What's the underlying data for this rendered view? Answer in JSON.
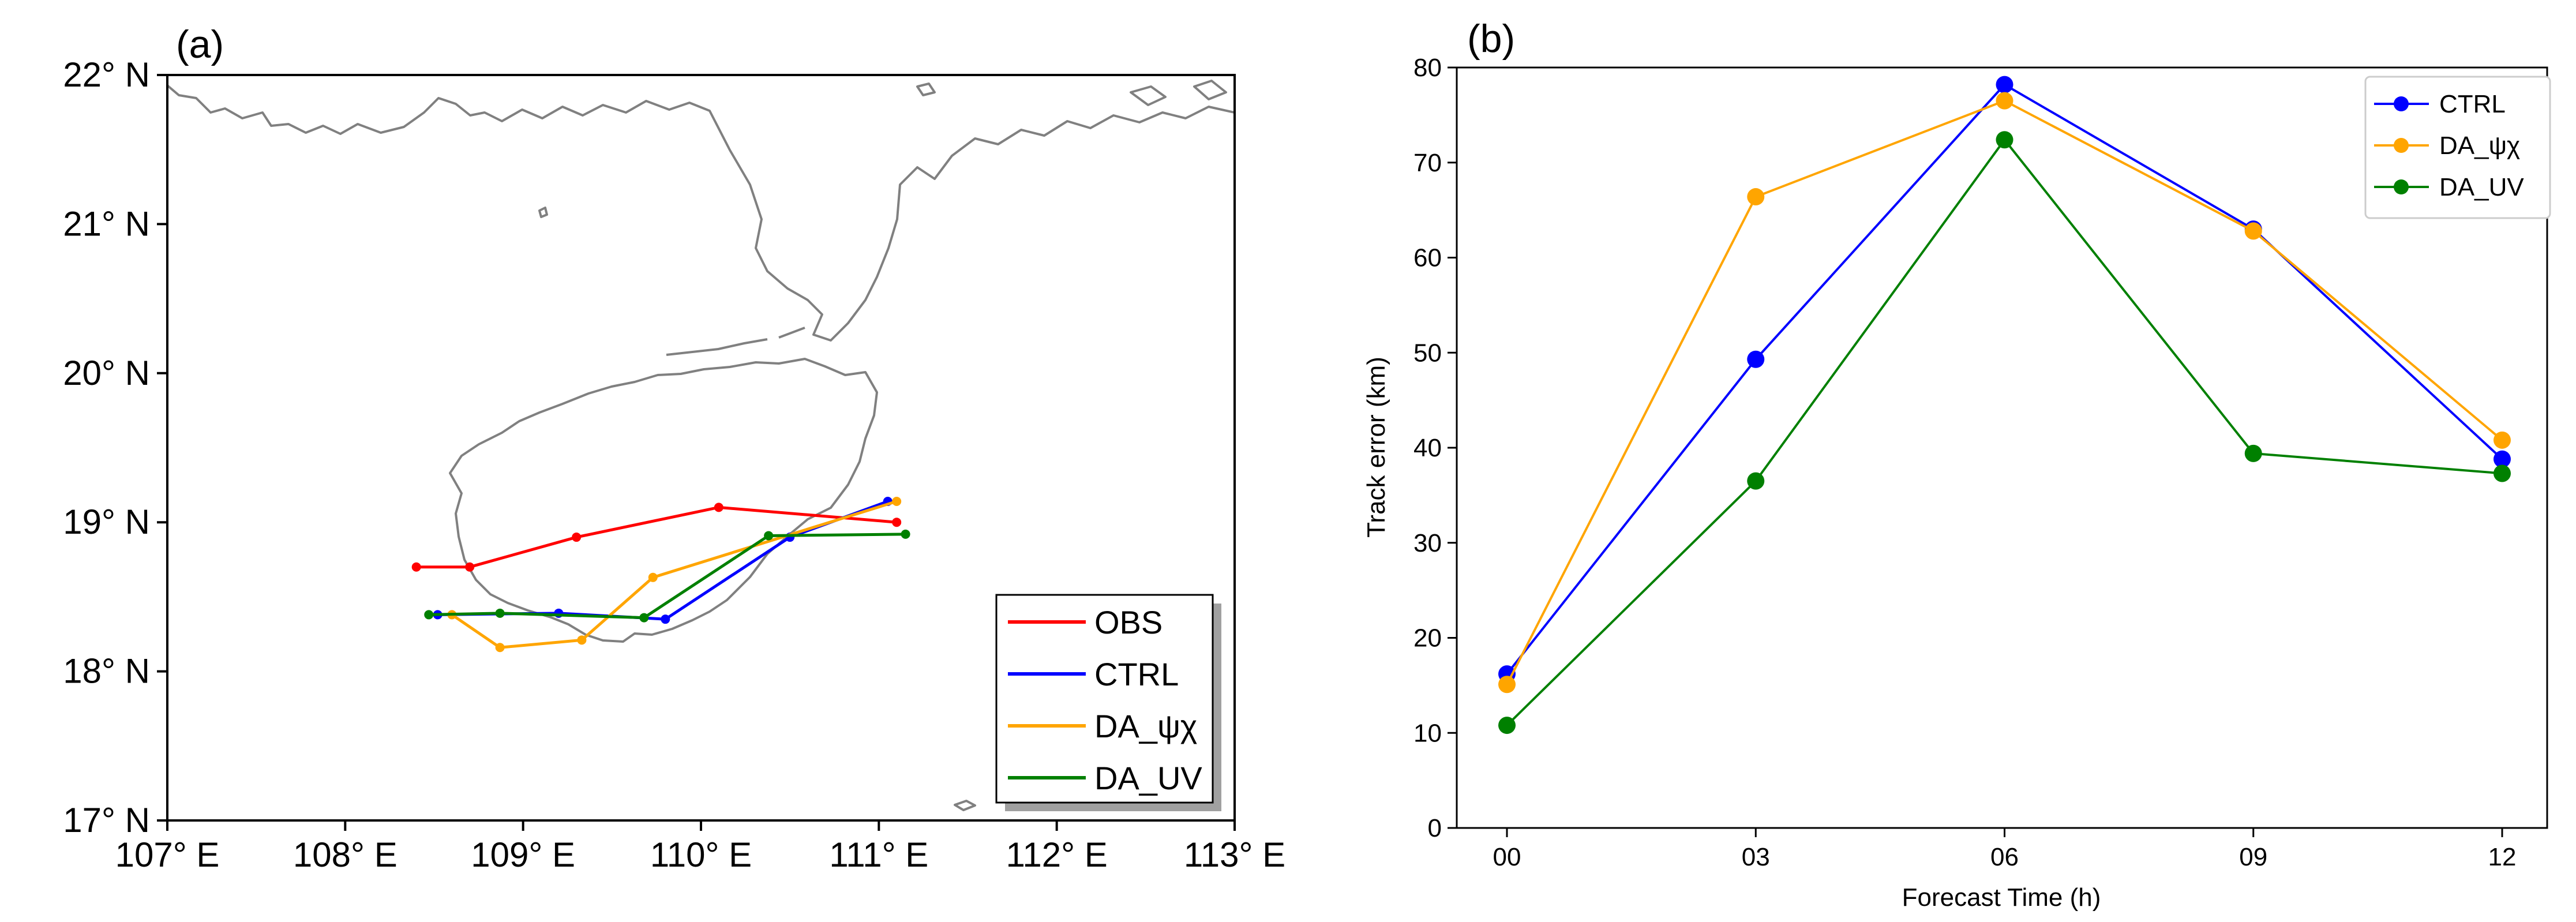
{
  "colors": {
    "obs": "#ff0000",
    "ctrl": "#0000ff",
    "da_psichi": "#ffa500",
    "da_uv": "#008000",
    "coast": "#808080",
    "axis": "#000000"
  },
  "chart_data": [
    {
      "panel": "(a)",
      "type": "line",
      "subtype": "track map",
      "xlim": [
        107,
        113
      ],
      "ylim": [
        17,
        22
      ],
      "x_ticks": [
        107,
        108,
        109,
        110,
        111,
        112,
        113
      ],
      "y_ticks": [
        17,
        18,
        19,
        20,
        21,
        22
      ],
      "x_tick_labels": [
        "107° E",
        "108° E",
        "109° E",
        "110° E",
        "111° E",
        "112° E",
        "113° E"
      ],
      "y_tick_labels": [
        "17° N",
        "18° N",
        "19° N",
        "20° N",
        "21° N",
        "22° N"
      ],
      "legend_position": "bottom-right",
      "series": [
        {
          "key": "obs",
          "name": "OBS",
          "lon": [
            108.4,
            108.7,
            109.3,
            110.1,
            111.1
          ],
          "lat": [
            18.7,
            18.7,
            18.9,
            19.1,
            19.0
          ]
        },
        {
          "key": "ctrl",
          "name": "CTRL",
          "lon": [
            108.52,
            109.2,
            109.8,
            110.5,
            111.05
          ],
          "lat": [
            18.38,
            18.39,
            18.35,
            18.9,
            19.14
          ]
        },
        {
          "key": "da_psichi",
          "name": "DA_ψχ",
          "lon": [
            108.6,
            108.87,
            109.33,
            109.73,
            111.1
          ],
          "lat": [
            18.38,
            18.16,
            18.21,
            18.63,
            19.14
          ]
        },
        {
          "key": "da_uv",
          "name": "DA_UV",
          "lon": [
            108.47,
            108.87,
            109.68,
            110.38,
            111.15
          ],
          "lat": [
            18.38,
            18.39,
            18.36,
            18.91,
            18.92
          ]
        }
      ]
    },
    {
      "panel": "(b)",
      "type": "line",
      "xlabel": "Forecast Time (h)",
      "ylabel": "Track error (km)",
      "categories": [
        "00",
        "03",
        "06",
        "09",
        "12"
      ],
      "ylim": [
        0,
        80
      ],
      "y_ticks": [
        0,
        10,
        20,
        30,
        40,
        50,
        60,
        70,
        80
      ],
      "legend_position": "top-right",
      "series": [
        {
          "key": "ctrl",
          "name": "CTRL",
          "values": [
            16.2,
            49.3,
            78.2,
            63.0,
            38.8
          ]
        },
        {
          "key": "da_psichi",
          "name": "DA_ψχ",
          "values": [
            15.1,
            66.4,
            76.5,
            62.8,
            40.8
          ]
        },
        {
          "key": "da_uv",
          "name": "DA_UV",
          "values": [
            10.8,
            36.5,
            72.4,
            39.4,
            37.3
          ]
        }
      ]
    }
  ]
}
